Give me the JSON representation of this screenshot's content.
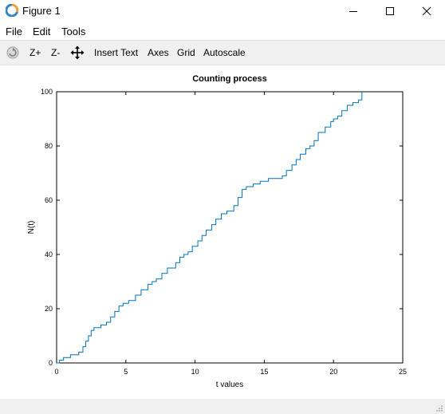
{
  "window": {
    "title": "Figure 1",
    "accent": "#2f87c8"
  },
  "menu": {
    "items": [
      "File",
      "Edit",
      "Tools"
    ]
  },
  "toolbar": {
    "rotate_icon": "rotate-icon",
    "zoom_in": "Z+",
    "zoom_out": "Z-",
    "pan_icon": "pan-move-icon",
    "insert_text": "Insert Text",
    "axes": "Axes",
    "grid": "Grid",
    "autoscale": "Autoscale"
  },
  "chart_data": {
    "type": "line",
    "title": "Counting process",
    "xlabel": "t values",
    "ylabel": "N(t)",
    "xlim": [
      0,
      25
    ],
    "ylim": [
      0,
      100
    ],
    "xticks": [
      0,
      5,
      10,
      15,
      20,
      25
    ],
    "yticks": [
      0,
      20,
      40,
      60,
      80,
      100
    ],
    "grid": false,
    "line_color": "#0072bd",
    "series": [
      {
        "step": true,
        "x": [
          0,
          0.2,
          0.5,
          1.0,
          1.6,
          1.9,
          2.1,
          2.3,
          2.5,
          2.7,
          3.2,
          3.6,
          3.9,
          4.2,
          4.5,
          4.8,
          5.2,
          5.7,
          6.1,
          6.6,
          6.9,
          7.2,
          7.6,
          8.0,
          8.6,
          8.9,
          9.2,
          9.5,
          9.8,
          10.2,
          10.5,
          10.8,
          11.2,
          11.5,
          11.9,
          12.3,
          12.8,
          13.1,
          13.4,
          13.7,
          14.2,
          14.7,
          15.3,
          16.3,
          16.6,
          17.0,
          17.3,
          17.6,
          18.0,
          18.3,
          18.6,
          18.9,
          19.4,
          19.8,
          20.0,
          20.3,
          20.6,
          21.0,
          21.4,
          21.8,
          22.05
        ],
        "y": [
          0,
          1,
          2,
          3,
          4,
          6,
          8,
          10,
          12,
          13,
          14,
          15,
          17,
          19,
          21,
          22,
          23,
          25,
          27,
          29,
          30,
          31,
          33,
          35,
          37,
          39,
          40,
          41,
          43,
          45,
          47,
          49,
          51,
          53,
          55,
          56,
          58,
          61,
          64,
          65,
          66,
          67,
          68,
          69,
          71,
          73,
          75,
          77,
          79,
          80,
          82,
          85,
          87,
          89,
          90,
          91,
          93,
          95,
          96,
          97,
          100
        ]
      }
    ]
  }
}
